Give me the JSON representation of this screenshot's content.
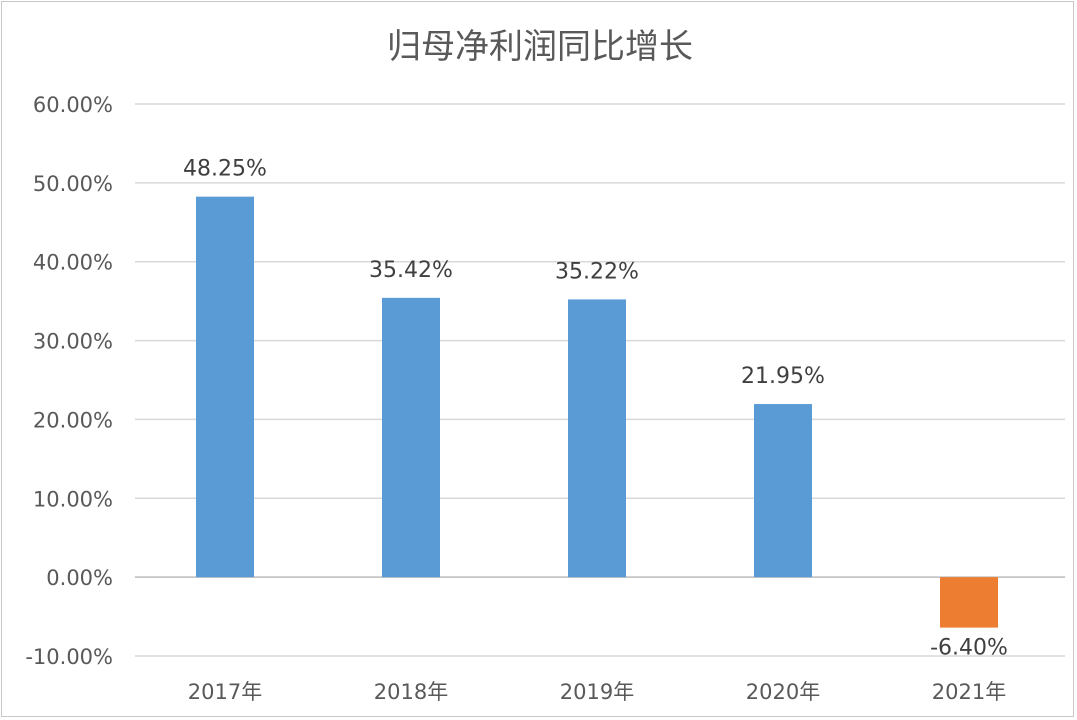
{
  "chart_data": {
    "type": "bar",
    "title": "归母净利润同比增长",
    "categories": [
      "2017年",
      "2018年",
      "2019年",
      "2020年",
      "2021年"
    ],
    "values": [
      48.25,
      35.42,
      35.22,
      21.95,
      -6.4
    ],
    "data_labels": [
      "48.25%",
      "35.42%",
      "35.22%",
      "21.95%",
      "-6.40%"
    ],
    "y_ticks": [
      "-10.00%",
      "0.00%",
      "10.00%",
      "20.00%",
      "30.00%",
      "40.00%",
      "50.00%",
      "60.00%"
    ],
    "ylim": [
      -10,
      60
    ],
    "xlabel": "",
    "ylabel": "",
    "grid": true,
    "legend": "none",
    "colors": {
      "positive": "#5B9BD5",
      "negative": "#ED7D31",
      "grid": "#D9D9D9"
    }
  }
}
